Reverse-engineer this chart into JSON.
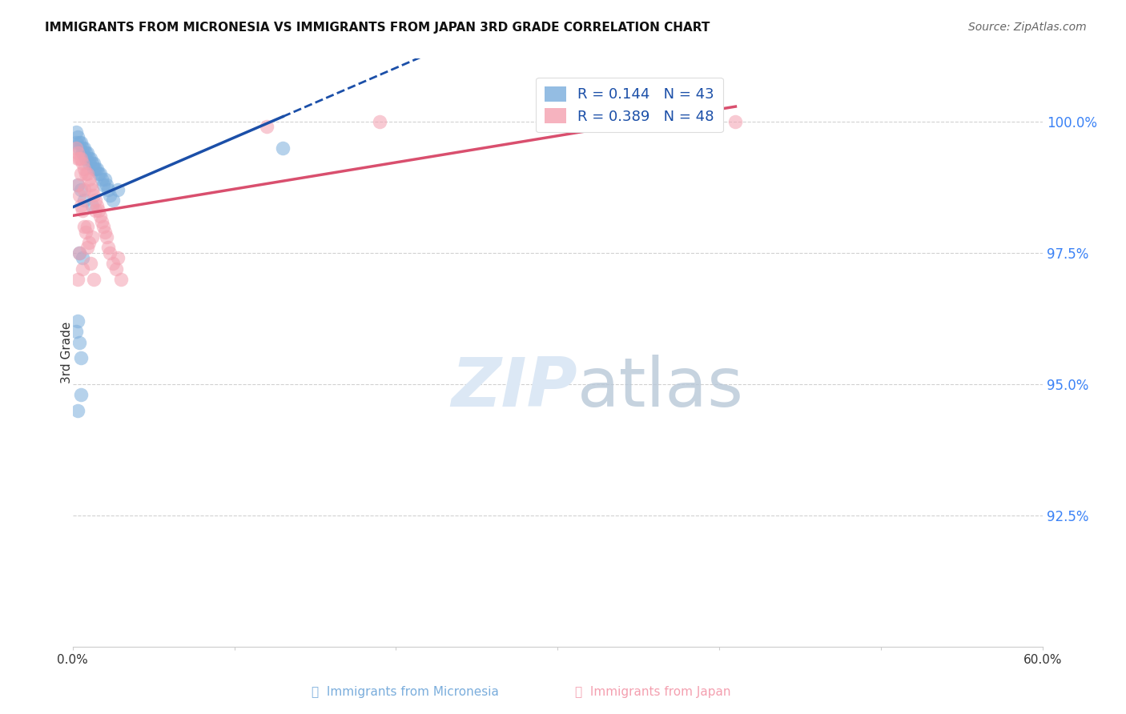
{
  "title": "IMMIGRANTS FROM MICRONESIA VS IMMIGRANTS FROM JAPAN 3RD GRADE CORRELATION CHART",
  "source": "Source: ZipAtlas.com",
  "ylabel": "3rd Grade",
  "xlim": [
    0.0,
    60.0
  ],
  "ylim": [
    90.0,
    101.2
  ],
  "ytick_vals": [
    92.5,
    95.0,
    97.5,
    100.0
  ],
  "ytick_labels": [
    "92.5%",
    "95.0%",
    "97.5%",
    "100.0%"
  ],
  "legend_r_micronesia": "0.144",
  "legend_n_micronesia": "43",
  "legend_r_japan": "0.389",
  "legend_n_japan": "48",
  "color_micronesia": "#7AADDC",
  "color_japan": "#F4A0B0",
  "color_micronesia_line": "#1B4FA8",
  "color_japan_line": "#D94F6E",
  "micronesia_x": [
    0.2,
    0.3,
    0.4,
    0.5,
    0.6,
    0.7,
    0.8,
    0.9,
    1.0,
    1.1,
    1.2,
    1.3,
    1.4,
    1.5,
    1.6,
    1.7,
    1.8,
    1.9,
    2.0,
    2.1,
    2.2,
    2.3,
    2.5,
    2.8,
    0.2,
    0.4,
    0.6,
    0.8,
    1.0,
    1.3,
    0.3,
    0.5,
    0.7,
    1.2,
    0.4,
    0.6,
    13.0,
    0.3,
    0.2,
    0.4,
    0.5,
    0.5,
    0.3
  ],
  "micronesia_y": [
    99.8,
    99.7,
    99.6,
    99.6,
    99.5,
    99.5,
    99.4,
    99.4,
    99.3,
    99.3,
    99.2,
    99.2,
    99.1,
    99.1,
    99.0,
    99.0,
    98.9,
    98.8,
    98.9,
    98.8,
    98.7,
    98.6,
    98.5,
    98.7,
    99.6,
    99.5,
    99.4,
    99.3,
    99.2,
    99.1,
    98.8,
    98.7,
    98.5,
    98.4,
    97.5,
    97.4,
    99.5,
    96.2,
    96.0,
    95.8,
    95.5,
    94.8,
    94.5
  ],
  "japan_x": [
    0.2,
    0.3,
    0.4,
    0.5,
    0.6,
    0.7,
    0.8,
    0.9,
    1.0,
    1.1,
    1.2,
    1.3,
    1.4,
    1.5,
    1.6,
    1.7,
    1.8,
    1.9,
    2.0,
    2.1,
    2.2,
    2.3,
    2.5,
    2.7,
    3.0,
    0.3,
    0.5,
    0.7,
    0.9,
    1.1,
    1.3,
    0.4,
    0.6,
    0.8,
    1.0,
    12.0,
    19.0,
    41.0,
    0.3,
    0.5,
    0.7,
    1.4,
    0.9,
    1.2,
    0.4,
    0.6,
    0.3,
    2.8
  ],
  "japan_y": [
    99.5,
    99.4,
    99.3,
    99.3,
    99.2,
    99.1,
    99.0,
    99.0,
    98.9,
    98.8,
    98.7,
    98.6,
    98.5,
    98.4,
    98.3,
    98.2,
    98.1,
    98.0,
    97.9,
    97.8,
    97.6,
    97.5,
    97.3,
    97.2,
    97.0,
    98.8,
    98.4,
    98.0,
    97.6,
    97.3,
    97.0,
    98.6,
    98.3,
    97.9,
    97.7,
    99.9,
    100.0,
    100.0,
    99.3,
    99.0,
    98.7,
    98.3,
    98.0,
    97.8,
    97.5,
    97.2,
    97.0,
    97.4
  ]
}
